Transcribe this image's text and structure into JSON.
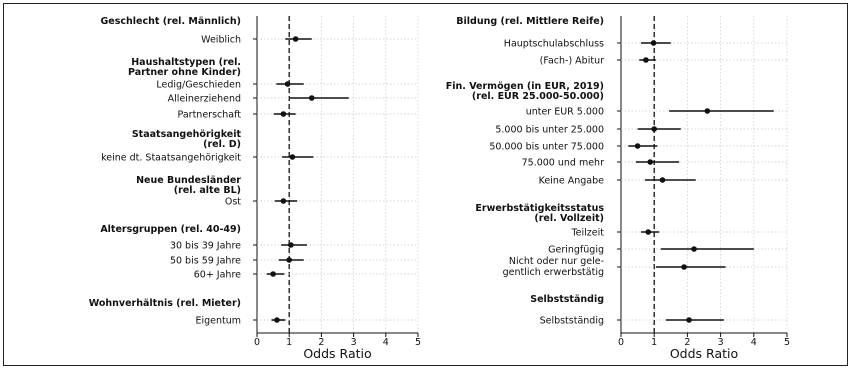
{
  "chart_data": [
    {
      "type": "scatter",
      "title": "",
      "xlabel": "Odds Ratio",
      "ylabel": "",
      "xlim": [
        0,
        5
      ],
      "xticks": [
        "0",
        "1",
        "2",
        "3",
        "4",
        "5"
      ],
      "reference_line": 1,
      "grid": "dotted horizontal",
      "groups": [
        {
          "label": [
            "Geschlecht (rel. Männlich)"
          ],
          "items": [
            {
              "label": "Weiblich",
              "or": 1.2,
              "lo": 0.88,
              "hi": 1.7
            }
          ]
        },
        {
          "label": [
            "Haushaltstypen (rel.",
            "Partner ohne Kinder)"
          ],
          "items": [
            {
              "label": "Ledig/Geschieden",
              "or": 0.95,
              "lo": 0.6,
              "hi": 1.45
            },
            {
              "label": "Alleinerziehend",
              "or": 1.7,
              "lo": 1.0,
              "hi": 2.85
            },
            {
              "label": "Partnerschaft",
              "or": 0.82,
              "lo": 0.52,
              "hi": 1.2
            }
          ]
        },
        {
          "label": [
            "Staatsangehörigkeit",
            "(rel. D)"
          ],
          "items": [
            {
              "label": "keine dt. Staatsangehörigkeit",
              "or": 1.1,
              "lo": 0.78,
              "hi": 1.75
            }
          ]
        },
        {
          "label": [
            "Neue Bundesländer",
            "(rel. alte BL)"
          ],
          "items": [
            {
              "label": "Ost",
              "or": 0.82,
              "lo": 0.55,
              "hi": 1.25
            }
          ]
        },
        {
          "label": [
            "Altersgruppen (rel. 40-49)"
          ],
          "items": [
            {
              "label": "30 bis 39 Jahre",
              "or": 1.05,
              "lo": 0.75,
              "hi": 1.55
            },
            {
              "label": "50 bis 59 Jahre",
              "or": 1.0,
              "lo": 0.68,
              "hi": 1.45
            },
            {
              "label": "60+ Jahre",
              "or": 0.5,
              "lo": 0.3,
              "hi": 0.85
            }
          ]
        },
        {
          "label": [
            "Wohnverhältnis (rel. Mieter)"
          ],
          "items": [
            {
              "label": "Eigentum",
              "or": 0.62,
              "lo": 0.45,
              "hi": 0.88
            }
          ]
        }
      ]
    },
    {
      "type": "scatter",
      "title": "",
      "xlabel": "Odds Ratio",
      "ylabel": "",
      "xlim": [
        0,
        5
      ],
      "xticks": [
        "0",
        "1",
        "2",
        "3",
        "4",
        "5"
      ],
      "reference_line": 1,
      "grid": "dotted horizontal",
      "groups": [
        {
          "label": [
            "Bildung (rel. Mittlere Reife)"
          ],
          "items": [
            {
              "label": "Hauptschulabschluss",
              "or": 0.98,
              "lo": 0.6,
              "hi": 1.5
            },
            {
              "label": "(Fach-) Abitur",
              "or": 0.75,
              "lo": 0.55,
              "hi": 1.05
            }
          ]
        },
        {
          "label": [
            "Fin. Vermögen (in EUR, 2019)",
            "(rel. EUR 25.000-50.000)"
          ],
          "items": [
            {
              "label": "unter EUR 5.000",
              "or": 2.6,
              "lo": 1.45,
              "hi": 4.6
            },
            {
              "label": "5.000 bis unter 25.000",
              "or": 1.0,
              "lo": 0.5,
              "hi": 1.8
            },
            {
              "label": "50.000 bis unter 75.000",
              "or": 0.5,
              "lo": 0.22,
              "hi": 1.1
            },
            {
              "label": "75.000 und mehr",
              "or": 0.88,
              "lo": 0.45,
              "hi": 1.75
            },
            {
              "label": "Keine Angabe",
              "or": 1.25,
              "lo": 0.72,
              "hi": 2.25
            }
          ]
        },
        {
          "label": [
            "Erwerbstätigkeitsstatus",
            "(rel. Vollzeit)"
          ],
          "items": [
            {
              "label": "Teilzeit",
              "or": 0.82,
              "lo": 0.6,
              "hi": 1.15
            }
          ]
        },
        {
          "label": [],
          "items": [
            {
              "label": "Geringfügig",
              "or": 2.2,
              "lo": 1.2,
              "hi": 4.0
            },
            {
              "label": "Nicht oder nur gele-|gentlich erwerbstätig",
              "or": 1.9,
              "lo": 1.05,
              "hi": 3.15
            }
          ]
        },
        {
          "label": [
            "Selbstständig"
          ],
          "items": [
            {
              "label": "Selbstständig",
              "or": 2.05,
              "lo": 1.35,
              "hi": 3.1
            }
          ]
        }
      ]
    }
  ]
}
